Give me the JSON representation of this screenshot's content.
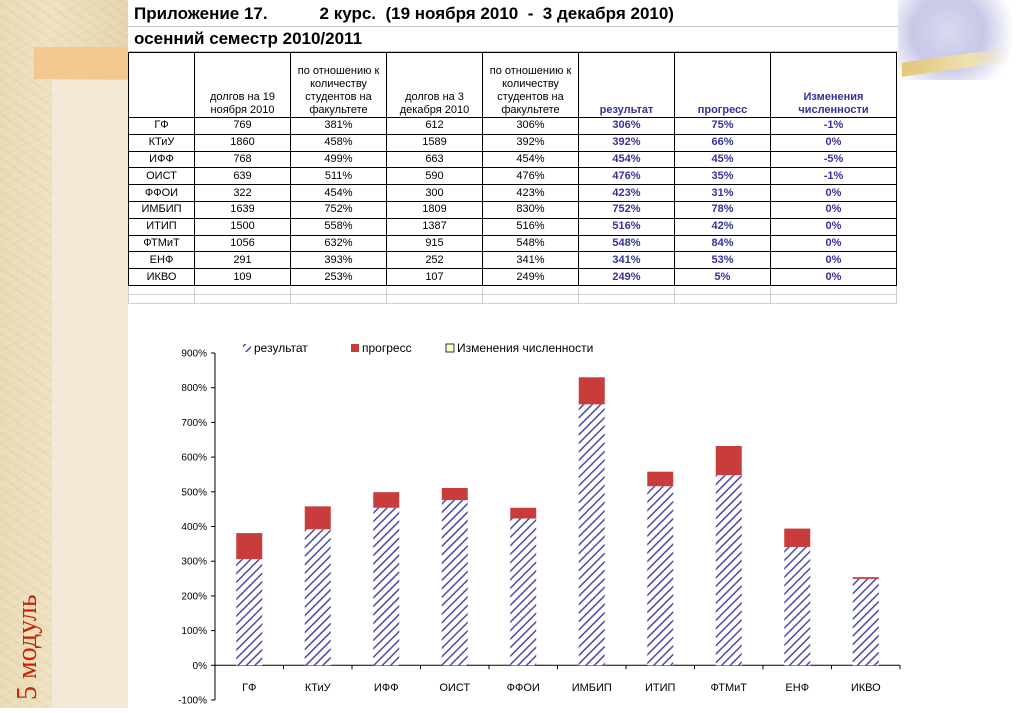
{
  "sidebar": {
    "module_label": "5 модуль"
  },
  "sheet": {
    "title_line1": "Приложение 17.           2 курс.  (19 ноября 2010  -  3 декабря 2010)",
    "title_line2": "осенний семестр 2010/2011",
    "headers": [
      "",
      "долгов на 19 ноября 2010",
      "по отношению к количеству студентов на факультете",
      "долгов на 3 декабря 2010",
      "по отношению к количеству студентов на факультете",
      "результат",
      "прогресс",
      "Изменения численности"
    ],
    "rows": [
      [
        "ГФ",
        "769",
        "381%",
        "612",
        "306%",
        "306%",
        "75%",
        "-1%"
      ],
      [
        "КТиУ",
        "1860",
        "458%",
        "1589",
        "392%",
        "392%",
        "66%",
        "0%"
      ],
      [
        "ИФФ",
        "768",
        "499%",
        "663",
        "454%",
        "454%",
        "45%",
        "-5%"
      ],
      [
        "ОИСТ",
        "639",
        "511%",
        "590",
        "476%",
        "476%",
        "35%",
        "-1%"
      ],
      [
        "ФФОИ",
        "322",
        "454%",
        "300",
        "423%",
        "423%",
        "31%",
        "0%"
      ],
      [
        "ИМБИП",
        "1639",
        "752%",
        "1809",
        "830%",
        "752%",
        "78%",
        "0%"
      ],
      [
        "ИТИП",
        "1500",
        "558%",
        "1387",
        "516%",
        "516%",
        "42%",
        "0%"
      ],
      [
        "ФТМиТ",
        "1056",
        "632%",
        "915",
        "548%",
        "548%",
        "84%",
        "0%"
      ],
      [
        "ЕНФ",
        "291",
        "393%",
        "252",
        "341%",
        "341%",
        "53%",
        "0%"
      ],
      [
        "ИКВО",
        "109",
        "253%",
        "107",
        "249%",
        "249%",
        "5%",
        "0%"
      ]
    ]
  },
  "colors": {
    "result": "#4a4aa8",
    "progress": "#c83c3c",
    "change": "#ffffcc",
    "accent_blue": "#333399",
    "module": "#cc2200"
  },
  "chart_data": {
    "type": "bar",
    "stacked": true,
    "categories": [
      "ГФ",
      "КТиУ",
      "ИФФ",
      "ОИСТ",
      "ФФОИ",
      "ИМБИП",
      "ИТИП",
      "ФТМиТ",
      "ЕНФ",
      "ИКВО"
    ],
    "series": [
      {
        "name": "результат",
        "values": [
          306,
          392,
          454,
          476,
          423,
          752,
          516,
          548,
          341,
          249
        ]
      },
      {
        "name": "прогресс",
        "values": [
          75,
          66,
          45,
          35,
          31,
          78,
          42,
          84,
          53,
          5
        ]
      },
      {
        "name": "Изменения численности",
        "values": [
          -1,
          0,
          -5,
          -1,
          0,
          0,
          0,
          0,
          0,
          0
        ]
      }
    ],
    "ylim": [
      -100,
      900
    ],
    "yticks": [
      "-100%",
      "0%",
      "100%",
      "200%",
      "300%",
      "400%",
      "500%",
      "600%",
      "700%",
      "800%",
      "900%"
    ],
    "legend_position": "top",
    "grid": false
  }
}
